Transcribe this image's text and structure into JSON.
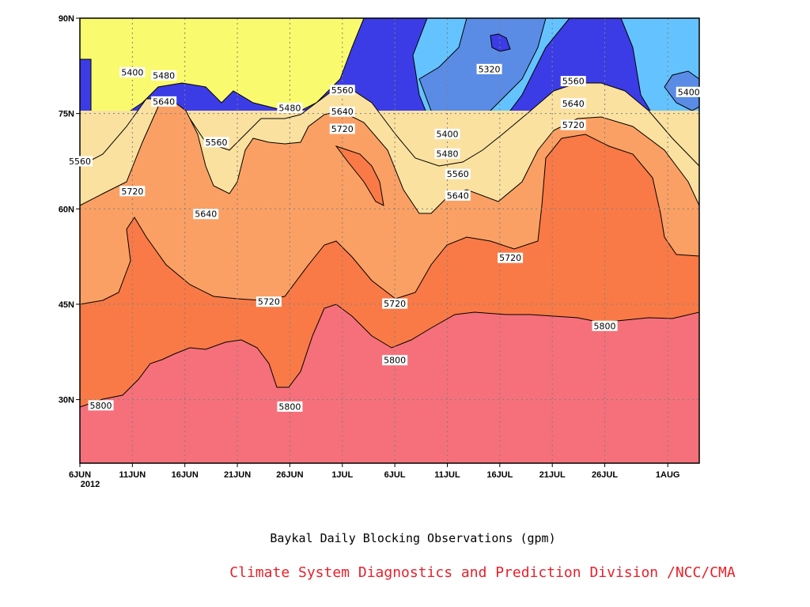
{
  "chart_data": {
    "type": "contour",
    "title": "",
    "caption": "Baykal Daily Blocking Observations (gpm)",
    "credit": "Climate System Diagnostics and Prediction Division /NCC/CMA",
    "x_ticks": [
      "6JUN",
      "11JUN",
      "16JUN",
      "21JUN",
      "26JUN",
      "1JUL",
      "6JUL",
      "11JUL",
      "16JUL",
      "21JUL",
      "26JUL",
      "1AUG"
    ],
    "x_year_label": "2012",
    "x_range": [
      "2012-06-06",
      "2012-08-04"
    ],
    "y_ticks": [
      "30N",
      "45N",
      "60N",
      "75N",
      "90N"
    ],
    "y_range": [
      20,
      90
    ],
    "contour_levels": [
      5320,
      5400,
      5480,
      5560,
      5640,
      5720,
      5800
    ],
    "fill_colors": {
      "below_5320": "#3c3ce6",
      "5320_5400": "#5a8ce6",
      "5400_5480": "#64c3ff",
      "5480_5560": "#fafa6e",
      "5560_5640": "#fae1a0",
      "5640_5720": "#fba064",
      "5720_5800": "#f97a46",
      "above_5800": "#f5707a"
    },
    "grid": true,
    "contour_labels": [
      {
        "text": "5400",
        "date": "2012-06-11",
        "lat": 81.5
      },
      {
        "text": "5480",
        "date": "2012-06-14",
        "lat": 81.0
      },
      {
        "text": "5640",
        "date": "2012-06-14",
        "lat": 76.9
      },
      {
        "text": "5560",
        "date": "2012-06-06",
        "lat": 67.5
      },
      {
        "text": "5560",
        "date": "2012-06-19",
        "lat": 70.5
      },
      {
        "text": "5720",
        "date": "2012-06-11",
        "lat": 62.8
      },
      {
        "text": "5640",
        "date": "2012-06-18",
        "lat": 59.2
      },
      {
        "text": "5480",
        "date": "2012-06-26",
        "lat": 75.9
      },
      {
        "text": "5560",
        "date": "2012-07-01",
        "lat": 78.7
      },
      {
        "text": "5640",
        "date": "2012-07-01",
        "lat": 75.3
      },
      {
        "text": "5720",
        "date": "2012-07-01",
        "lat": 72.6
      },
      {
        "text": "5720",
        "date": "2012-06-24",
        "lat": 45.4
      },
      {
        "text": "5800",
        "date": "2012-06-26",
        "lat": 28.9
      },
      {
        "text": "5800",
        "date": "2012-06-08",
        "lat": 29.1
      },
      {
        "text": "5720",
        "date": "2012-07-06",
        "lat": 45.1
      },
      {
        "text": "5800",
        "date": "2012-07-06",
        "lat": 36.2
      },
      {
        "text": "5320",
        "date": "2012-07-15",
        "lat": 82.0
      },
      {
        "text": "5400",
        "date": "2012-07-11",
        "lat": 71.8
      },
      {
        "text": "5480",
        "date": "2012-07-11",
        "lat": 68.7
      },
      {
        "text": "5560",
        "date": "2012-07-12",
        "lat": 65.5
      },
      {
        "text": "5640",
        "date": "2012-07-12",
        "lat": 62.1
      },
      {
        "text": "5560",
        "date": "2012-07-23",
        "lat": 80.1
      },
      {
        "text": "5640",
        "date": "2012-07-23",
        "lat": 76.6
      },
      {
        "text": "5720",
        "date": "2012-07-23",
        "lat": 73.2
      },
      {
        "text": "5720",
        "date": "2012-07-17",
        "lat": 52.3
      },
      {
        "text": "5800",
        "date": "2012-07-26",
        "lat": 41.6
      },
      {
        "text": "5400",
        "date": "2012-08-03",
        "lat": 78.4
      }
    ]
  }
}
